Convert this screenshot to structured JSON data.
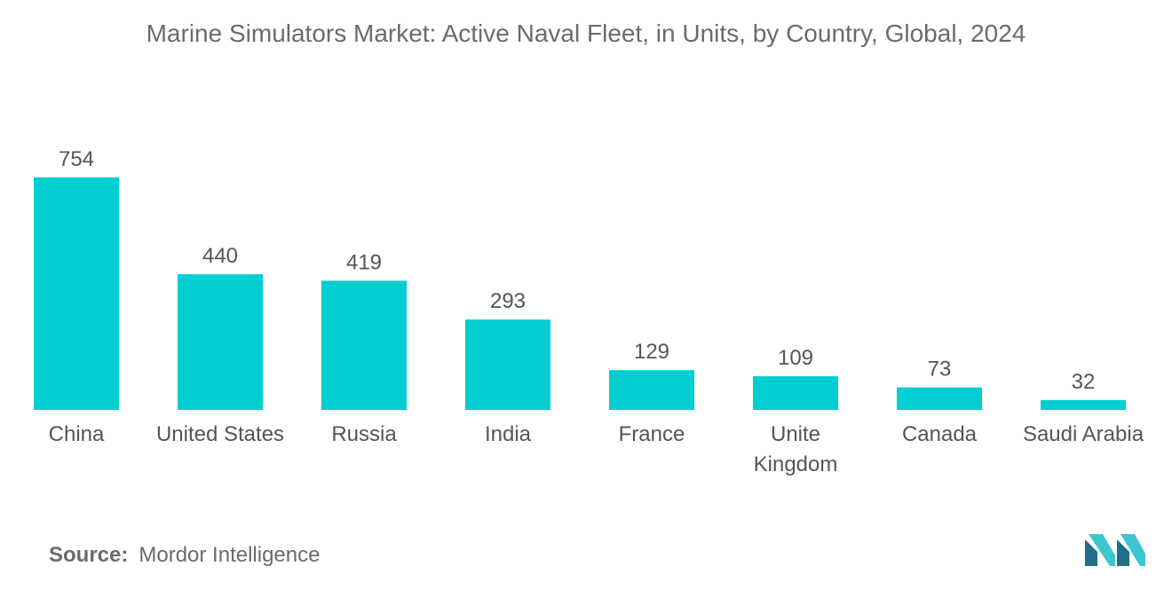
{
  "title": "Marine Simulators Market: Active Naval Fleet, in Units, by Country, Global, 2024",
  "source": {
    "label": "Source:",
    "text": "Mordor Intelligence"
  },
  "logo_icon": "mordor-intelligence-logo-icon",
  "colors": {
    "bar": "#00CED1",
    "text": "#555555",
    "logo_dark": "#1f6f8b",
    "logo_light": "#3cc7d0"
  },
  "chart_data": {
    "type": "bar",
    "categories": [
      "China",
      "United States",
      "Russia",
      "India",
      "France",
      "Unite Kingdom",
      "Canada",
      "Saudi Arabia"
    ],
    "category_lines": [
      [
        "China"
      ],
      [
        "United States"
      ],
      [
        "Russia"
      ],
      [
        "India"
      ],
      [
        "France"
      ],
      [
        "Unite",
        "Kingdom"
      ],
      [
        "Canada"
      ],
      [
        "Saudi Arabia"
      ]
    ],
    "values": [
      754,
      440,
      419,
      293,
      129,
      109,
      73,
      32
    ],
    "title": "Marine Simulators Market: Active Naval Fleet, in Units, by Country, Global, 2024",
    "xlabel": "",
    "ylabel": "",
    "ylim": [
      0,
      754
    ],
    "grid": false,
    "legend": "none",
    "data_labels": true
  }
}
